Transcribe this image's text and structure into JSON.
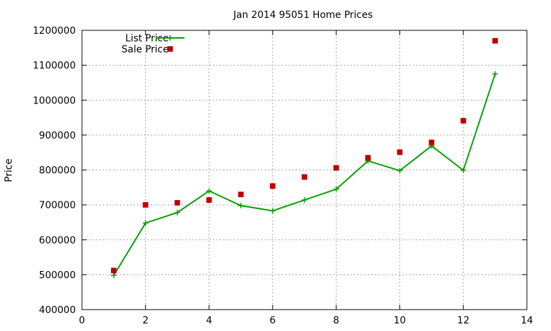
{
  "chart_data": {
    "type": "line",
    "title": "Jan 2014 95051 Home Prices",
    "xlabel": "",
    "ylabel": "Price",
    "xlim": [
      0,
      14
    ],
    "ylim": [
      400000,
      1200000
    ],
    "xticks": [
      0,
      2,
      4,
      6,
      8,
      10,
      12,
      14
    ],
    "yticks": [
      400000,
      500000,
      600000,
      700000,
      800000,
      900000,
      1000000,
      1100000,
      1200000
    ],
    "grid": true,
    "legend_position": "top-left",
    "series": [
      {
        "name": "List Price",
        "style": "line-with-plus-markers",
        "color": "#00a000",
        "x": [
          1,
          2,
          3,
          4,
          5,
          6,
          7,
          8,
          9,
          10,
          11,
          12,
          13
        ],
        "y": [
          498000,
          648000,
          678000,
          740000,
          698000,
          683000,
          714000,
          745000,
          826000,
          798000,
          869000,
          799000,
          1075000
        ]
      },
      {
        "name": "Sale Price",
        "style": "square-markers",
        "color": "#c00000",
        "x": [
          1,
          2,
          3,
          4,
          5,
          6,
          7,
          8,
          9,
          10,
          11,
          12,
          13
        ],
        "y": [
          512000,
          700000,
          706000,
          714000,
          730000,
          754000,
          780000,
          806000,
          835000,
          851000,
          879000,
          941000,
          1170000
        ]
      }
    ]
  }
}
